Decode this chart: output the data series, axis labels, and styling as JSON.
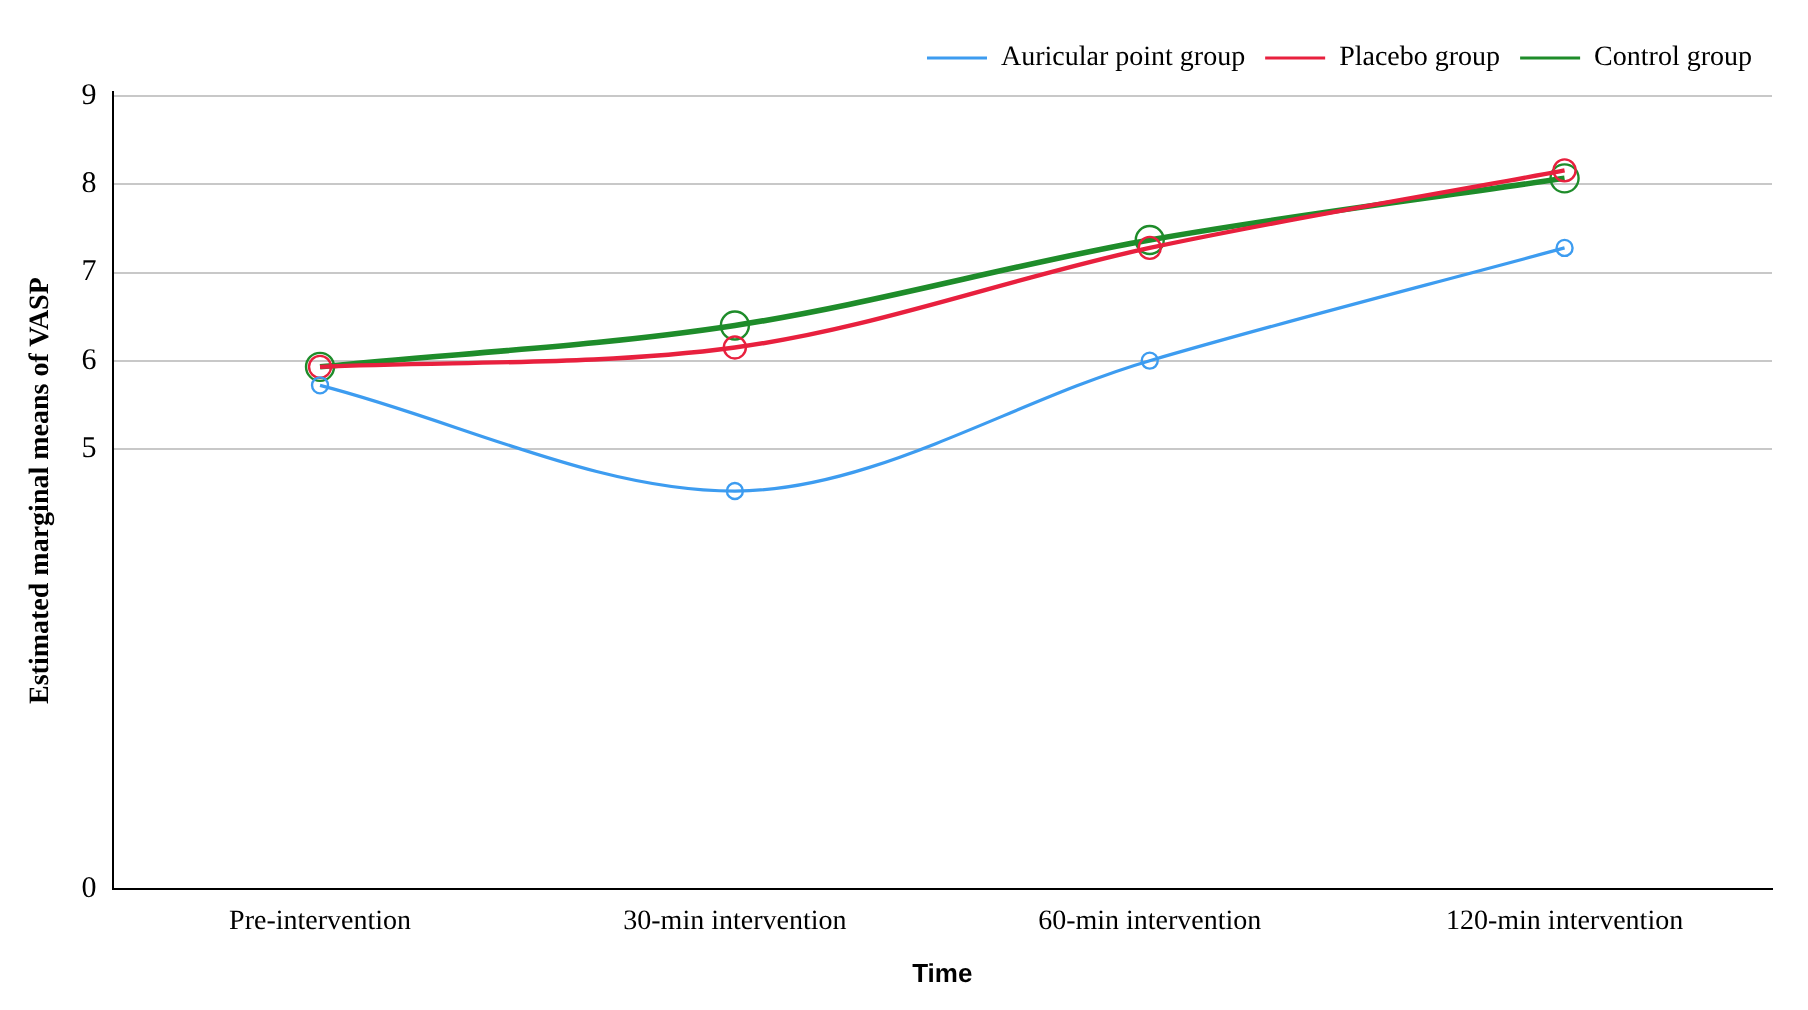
{
  "chart_data": {
    "type": "line",
    "xlabel": "Time",
    "ylabel": "Estimated marginal means of VASP",
    "categories": [
      "Pre-intervention",
      "30-min intervention",
      "60-min intervention",
      "120-min intervention"
    ],
    "series": [
      {
        "name": "Auricular point group",
        "color": "#3d9cf0",
        "values": [
          5.72,
          4.52,
          6.0,
          7.28
        ]
      },
      {
        "name": "Placebo group",
        "color": "#e8203e",
        "values": [
          5.93,
          6.15,
          7.28,
          8.16
        ]
      },
      {
        "name": "Control group",
        "color": "#1e8c2a",
        "values": [
          5.93,
          6.4,
          7.37,
          8.07
        ]
      }
    ],
    "ylim": [
      0,
      9.05
    ],
    "yticks": [
      0,
      5,
      6,
      7,
      8,
      9
    ],
    "grid": "y",
    "legend": "top right",
    "marker": "circle",
    "line_style": "solid"
  }
}
